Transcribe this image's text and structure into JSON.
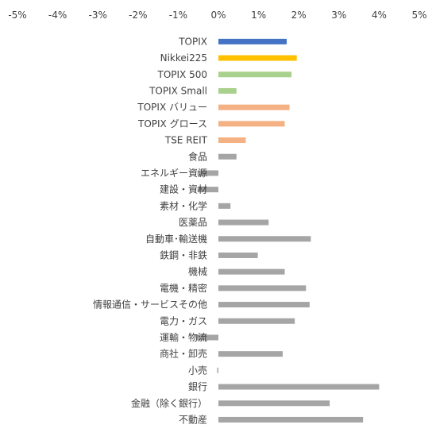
{
  "chart_data": {
    "type": "bar",
    "orientation": "horizontal",
    "title": "",
    "xlabel": "",
    "ylabel": "",
    "xlim": [
      -5,
      5
    ],
    "x_ticks": [
      "-5%",
      "-4%",
      "-3%",
      "-2%",
      "-1%",
      "0%",
      "1%",
      "2%",
      "3%",
      "4%",
      "5%"
    ],
    "x_axis_position": "top",
    "grid": false,
    "legend": "none",
    "categories": [
      "TOPIX",
      "Nikkei225",
      "TOPIX 500",
      "TOPIX Small",
      "TOPIX バリュー",
      "TOPIX グロース",
      "TSE REIT",
      "食品",
      "エネルギー資源",
      "建設・資材",
      "素材・化学",
      "医薬品",
      "自動車･輸送機",
      "鉄鋼・非鉄",
      "機械",
      "電機・精密",
      "情報通信・サービスその他",
      "電力・ガス",
      "運輸・物流",
      "商社・卸売",
      "小売",
      "銀行",
      "金融（除く銀行）",
      "不動産"
    ],
    "values": [
      1.7,
      1.95,
      1.82,
      0.45,
      1.77,
      1.65,
      0.68,
      0.45,
      -0.52,
      -0.52,
      0.3,
      1.25,
      2.3,
      0.98,
      1.65,
      2.18,
      2.27,
      1.9,
      -0.55,
      1.6,
      -0.03,
      4.0,
      2.77,
      3.6
    ],
    "colors": [
      "#4472C4",
      "#FFC000",
      "#A9D18E",
      "#A9D18E",
      "#F4B183",
      "#F4B183",
      "#F4B183",
      "#A5A5A5",
      "#A5A5A5",
      "#A5A5A5",
      "#A5A5A5",
      "#A5A5A5",
      "#A5A5A5",
      "#A5A5A5",
      "#A5A5A5",
      "#A5A5A5",
      "#A5A5A5",
      "#A5A5A5",
      "#A5A5A5",
      "#A5A5A5",
      "#A5A5A5",
      "#A5A5A5",
      "#A5A5A5",
      "#A5A5A5"
    ]
  }
}
